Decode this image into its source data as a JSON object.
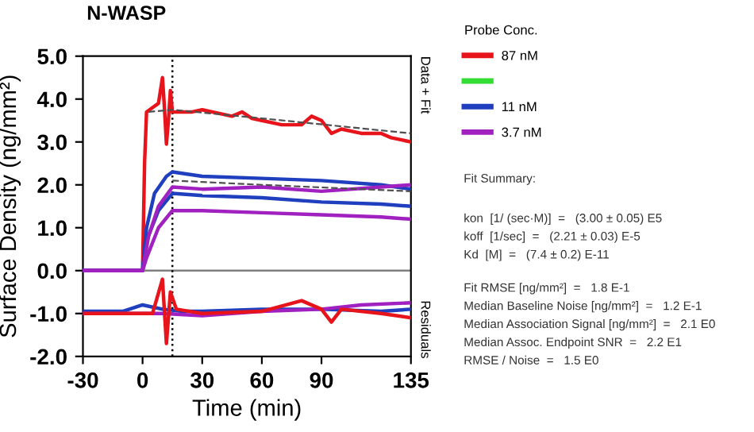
{
  "chart_data": {
    "type": "line",
    "title": "N-WASP",
    "xlabel": "Time (min)",
    "ylabel": "Surface Density (ng/mm²)",
    "legend_title": "Probe Conc.",
    "xlim": [
      -30,
      135
    ],
    "xticks": [
      -30,
      0,
      30,
      60,
      90,
      135
    ],
    "ylim": [
      -2,
      5
    ],
    "yticks": [
      {
        "value": -2,
        "label": "-2.0"
      },
      {
        "value": -1,
        "label": "-1.0"
      },
      {
        "value": 0,
        "label": "0.0"
      },
      {
        "value": 1,
        "label": "1.0"
      },
      {
        "value": 2,
        "label": "2.0"
      },
      {
        "value": 3,
        "label": "3.0"
      },
      {
        "value": 4,
        "label": "4.0"
      },
      {
        "value": 5,
        "label": "5.0"
      }
    ],
    "grid": false,
    "legend": "right",
    "marker": "none",
    "line_style": "solid",
    "ref_lines": [
      {
        "axis": "y",
        "value": 0,
        "color": "#808080",
        "line_style": "solid"
      },
      {
        "axis": "x",
        "value": 15,
        "color": "#000000",
        "line_style": "dotted"
      }
    ],
    "series": [
      {
        "name": "87 nM",
        "color": "#e8141c",
        "x": [
          -30,
          -10,
          0,
          1,
          2,
          5,
          8,
          10,
          11,
          12,
          13,
          14,
          15,
          17,
          25,
          30,
          40,
          45,
          50,
          55,
          60,
          70,
          80,
          85,
          90,
          95,
          100,
          110,
          120,
          125,
          135
        ],
        "values": [
          0,
          0,
          0,
          2.5,
          3.7,
          3.8,
          3.9,
          4.5,
          3.8,
          2.95,
          3.5,
          4.2,
          3.7,
          3.7,
          3.7,
          3.75,
          3.65,
          3.6,
          3.7,
          3.55,
          3.5,
          3.4,
          3.4,
          3.6,
          3.5,
          3.2,
          3.3,
          3.2,
          3.2,
          3.1,
          3.0
        ]
      },
      {
        "color": "#33dd33"
      },
      {
        "name": "11 nM",
        "color": "#1f3fbf",
        "x": [
          -30,
          0,
          2,
          6,
          12,
          15,
          30,
          60,
          90,
          120,
          135
        ],
        "values": [
          0,
          0,
          1.0,
          1.8,
          2.2,
          2.3,
          2.2,
          2.15,
          2.1,
          2.0,
          1.9
        ]
      },
      {
        "color": "#1f3fbf",
        "x": [
          -30,
          0,
          2,
          8,
          15,
          30,
          60,
          90,
          120,
          135
        ],
        "values": [
          0,
          0,
          0.7,
          1.4,
          1.8,
          1.75,
          1.7,
          1.6,
          1.55,
          1.5
        ]
      },
      {
        "name": "3.7 nM",
        "color": "#a020c0",
        "x": [
          -30,
          0,
          3,
          8,
          15,
          30,
          60,
          90,
          120,
          135
        ],
        "values": [
          0,
          0,
          0.8,
          1.5,
          1.95,
          1.9,
          1.95,
          1.85,
          1.95,
          2.0
        ]
      },
      {
        "color": "#a020c0",
        "x": [
          -30,
          0,
          2,
          8,
          15,
          30,
          60,
          90,
          120,
          135
        ],
        "values": [
          0,
          0,
          0.3,
          1.0,
          1.4,
          1.4,
          1.35,
          1.3,
          1.25,
          1.2
        ]
      },
      {
        "color": "#505050",
        "line_style": "dashed",
        "x": [
          3,
          15,
          60,
          135
        ],
        "values": [
          3.7,
          3.75,
          3.55,
          3.2
        ]
      },
      {
        "color": "#505050",
        "line_style": "dashed",
        "x": [
          15,
          60,
          135
        ],
        "values": [
          2.1,
          2.0,
          1.85
        ]
      },
      {
        "color": "#1f3fbf",
        "x": [
          -30,
          -10,
          0,
          10,
          20,
          30,
          60,
          90,
          120,
          135
        ],
        "values": [
          -0.95,
          -0.95,
          -0.8,
          -0.9,
          -0.95,
          -0.95,
          -0.9,
          -0.9,
          -0.95,
          -0.9
        ]
      },
      {
        "color": "#a020c0",
        "x": [
          -30,
          0,
          10,
          30,
          60,
          90,
          110,
          135
        ],
        "values": [
          -1.0,
          -1.0,
          -1.0,
          -1.05,
          -0.95,
          -0.9,
          -0.8,
          -0.75
        ]
      },
      {
        "color": "#e8141c",
        "x": [
          -30,
          0,
          5,
          10,
          12,
          14,
          17,
          30,
          60,
          80,
          90,
          95,
          100,
          120,
          135
        ],
        "values": [
          -1.0,
          -1.0,
          -1.0,
          -0.2,
          -1.7,
          -0.5,
          -0.9,
          -1.0,
          -0.95,
          -0.7,
          -0.9,
          -1.2,
          -0.9,
          -1.0,
          -1.1
        ]
      }
    ],
    "annotations": [
      "Data + Fit",
      "Residuals",
      "Fit Summary:",
      "kon  [1/ (sec·M)]  =   (3.00 ± 0.05) E5",
      "koff  [1/sec]  =   (2.21 ± 0.03) E-5",
      "Kd  [M]  =   (7.4 ± 0.2) E-11",
      "Fit RMSE [ng/mm²]  =   1.8 E-1",
      "Median Baseline Noise [ng/mm²]  =   1.2 E-1",
      "Median Association Signal [ng/mm²]  =   2.1 E0",
      "Median Assoc. Endpoint SNR  =   2.2 E1",
      "RMSE / Noise  =   1.5 E0"
    ]
  }
}
